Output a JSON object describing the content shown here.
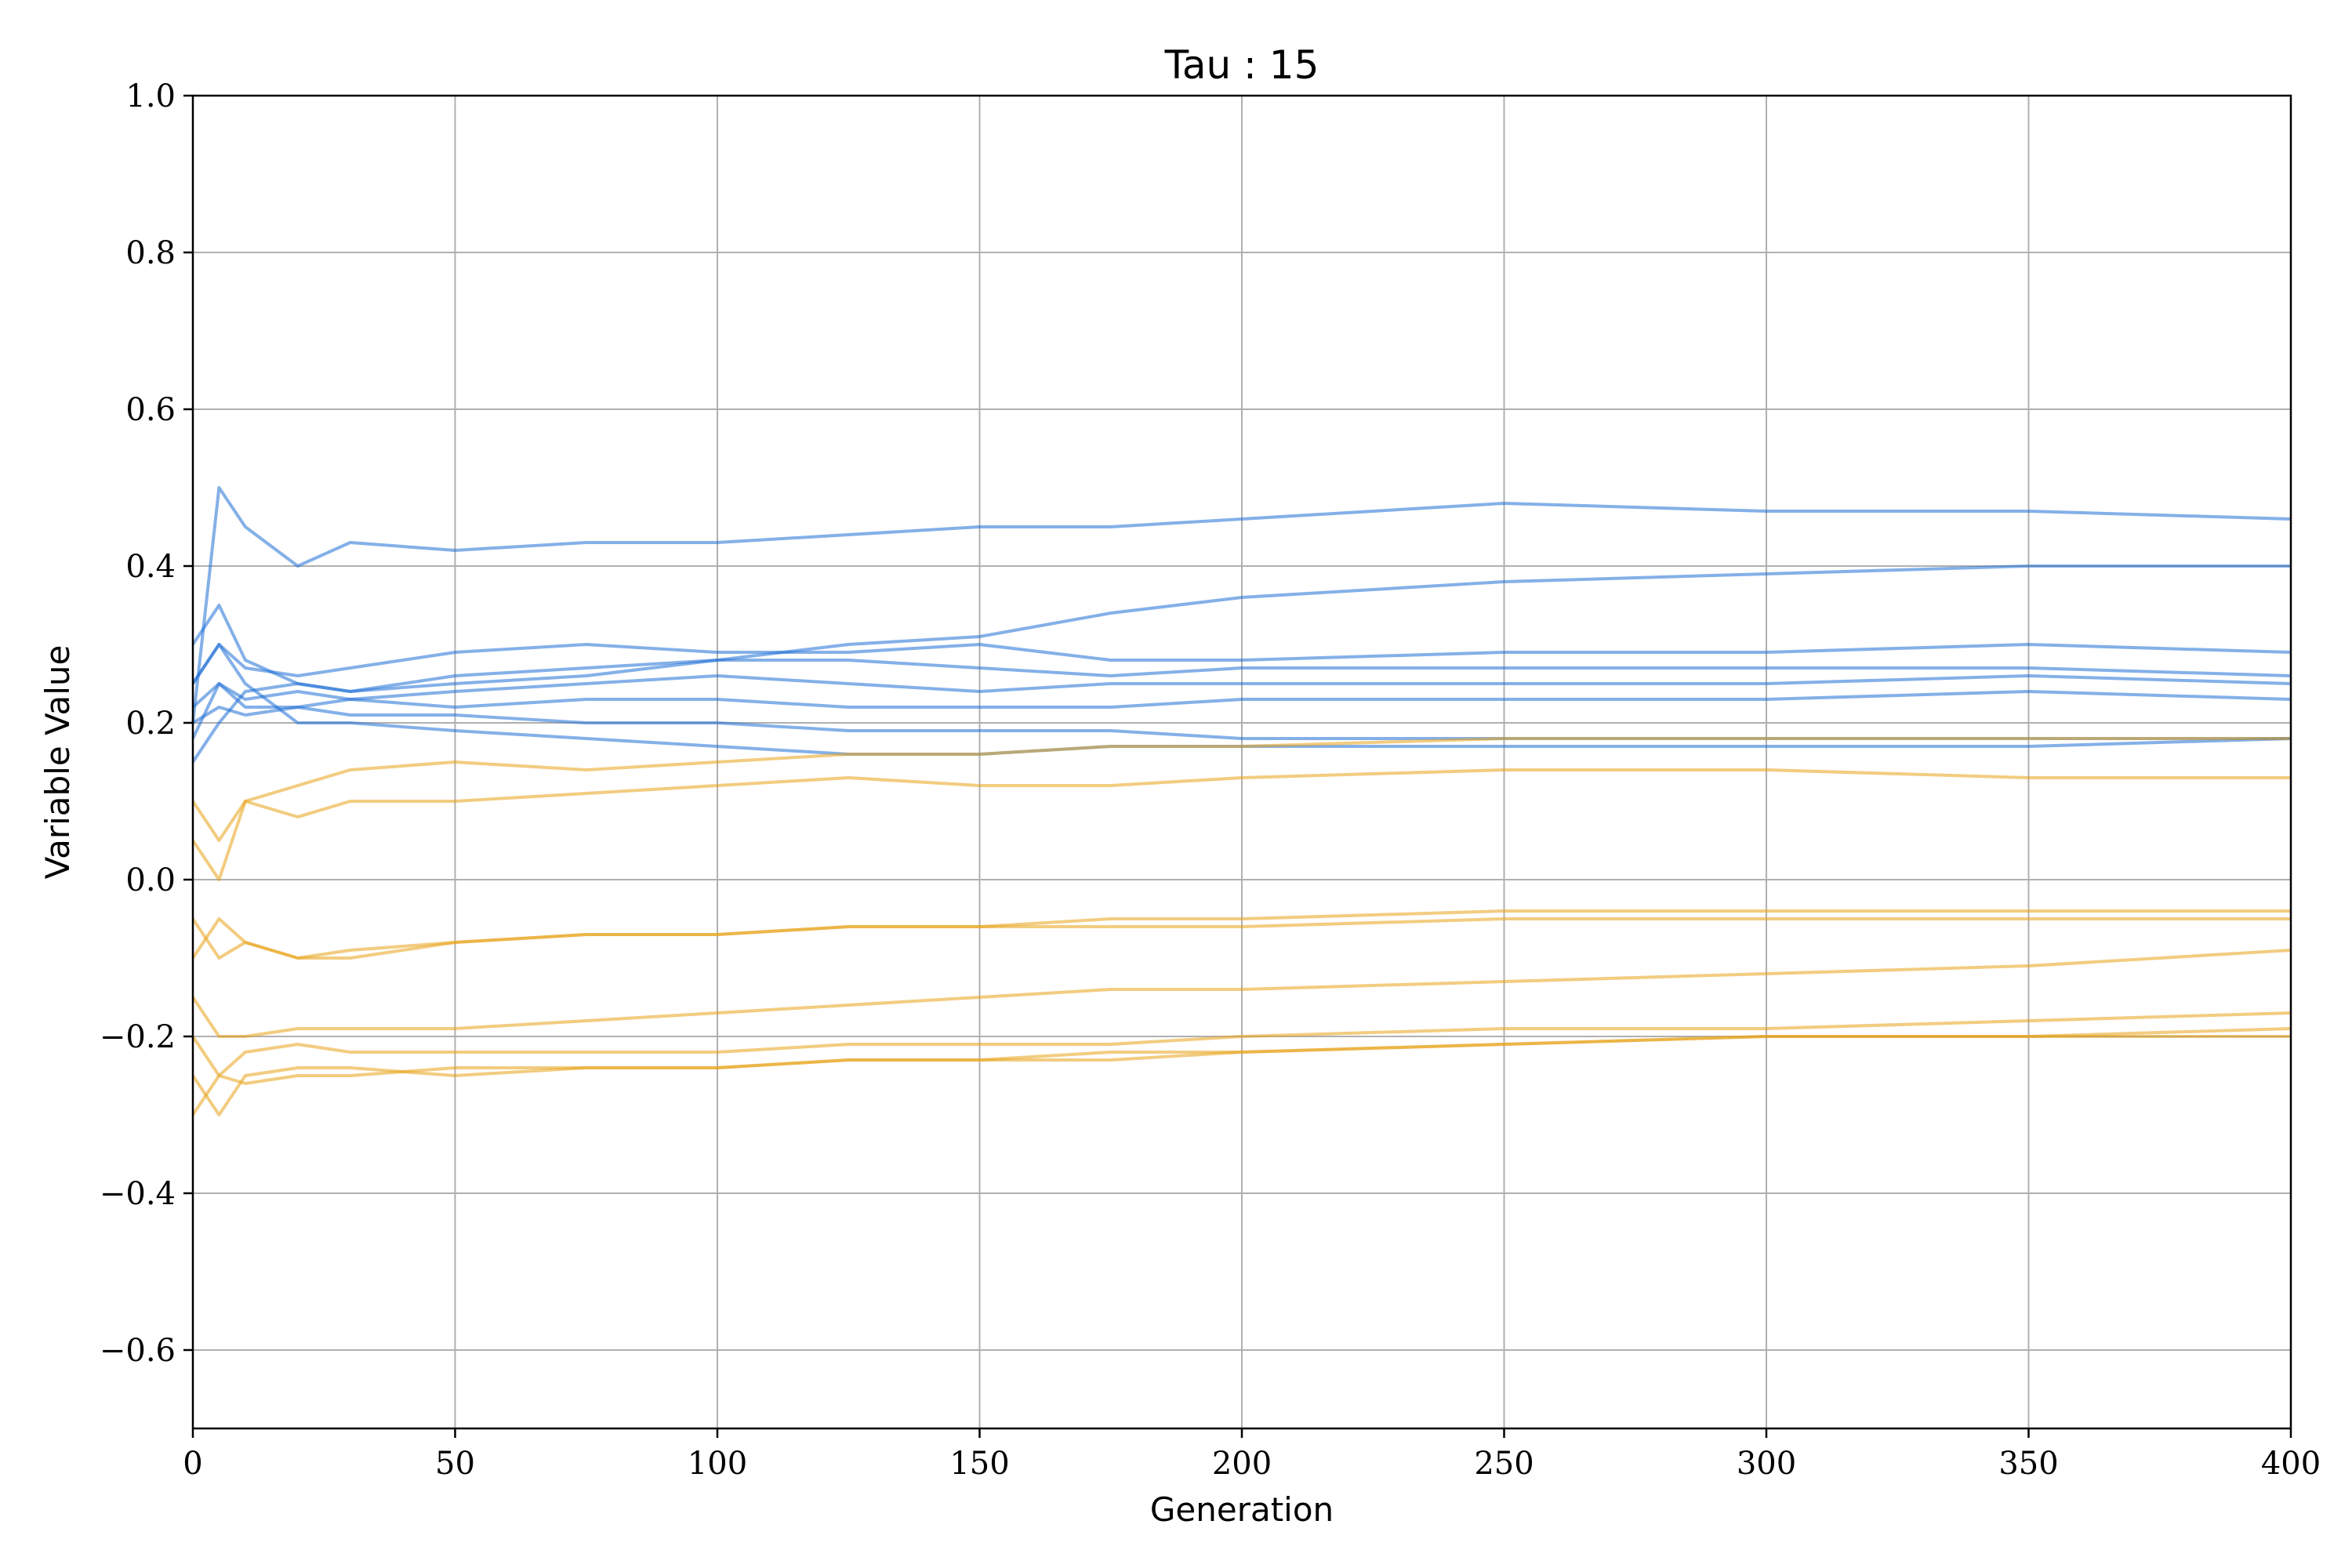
{
  "chart_data": {
    "type": "line",
    "title": "Tau : 15",
    "xlabel": "Generation",
    "ylabel": "Variable Value",
    "xlim": [
      0,
      400
    ],
    "ylim": [
      -0.7,
      1.0
    ],
    "xticks": [
      0,
      50,
      100,
      150,
      200,
      250,
      300,
      350,
      400
    ],
    "xtick_labels": [
      "0",
      "50",
      "100",
      "150",
      "200",
      "250",
      "300",
      "350",
      "400"
    ],
    "yticks": [
      -0.6,
      -0.4,
      -0.2,
      0.0,
      0.2,
      0.4,
      0.6,
      0.8,
      1.0
    ],
    "ytick_labels": [
      "−0.6",
      "−0.4",
      "−0.2",
      "0.0",
      "0.2",
      "0.4",
      "0.6",
      "0.8",
      "1.0"
    ],
    "grid": true,
    "legend": "none",
    "colors": {
      "blue": "#1f6fd6",
      "orange": "#e8a317"
    },
    "series": [
      {
        "color": "blue",
        "x": [
          0,
          5,
          10,
          20,
          30,
          50,
          75,
          100,
          125,
          150,
          175,
          200,
          250,
          300,
          350,
          400
        ],
        "y": [
          0.2,
          0.5,
          0.45,
          0.4,
          0.43,
          0.42,
          0.43,
          0.43,
          0.44,
          0.45,
          0.45,
          0.46,
          0.48,
          0.47,
          0.47,
          0.46
        ]
      },
      {
        "color": "blue",
        "x": [
          0,
          5,
          10,
          20,
          30,
          50,
          75,
          100,
          125,
          150,
          175,
          200,
          250,
          300,
          350,
          400
        ],
        "y": [
          0.3,
          0.35,
          0.28,
          0.25,
          0.24,
          0.25,
          0.26,
          0.28,
          0.3,
          0.31,
          0.34,
          0.36,
          0.38,
          0.39,
          0.4,
          0.4
        ]
      },
      {
        "color": "blue",
        "x": [
          0,
          5,
          10,
          20,
          30,
          50,
          75,
          100,
          125,
          150,
          175,
          200,
          250,
          300,
          350,
          400
        ],
        "y": [
          0.25,
          0.3,
          0.27,
          0.26,
          0.27,
          0.29,
          0.3,
          0.29,
          0.29,
          0.3,
          0.28,
          0.28,
          0.29,
          0.29,
          0.3,
          0.29
        ]
      },
      {
        "color": "blue",
        "x": [
          0,
          5,
          10,
          20,
          30,
          50,
          75,
          100,
          125,
          150,
          175,
          200,
          250,
          300,
          350,
          400
        ],
        "y": [
          0.15,
          0.2,
          0.24,
          0.25,
          0.24,
          0.26,
          0.27,
          0.28,
          0.28,
          0.27,
          0.26,
          0.27,
          0.27,
          0.27,
          0.27,
          0.26
        ]
      },
      {
        "color": "blue",
        "x": [
          0,
          5,
          10,
          20,
          30,
          50,
          75,
          100,
          125,
          150,
          175,
          200,
          250,
          300,
          350,
          400
        ],
        "y": [
          0.22,
          0.25,
          0.23,
          0.24,
          0.23,
          0.24,
          0.25,
          0.26,
          0.25,
          0.24,
          0.25,
          0.25,
          0.25,
          0.25,
          0.26,
          0.25
        ]
      },
      {
        "color": "blue",
        "x": [
          0,
          5,
          10,
          20,
          30,
          50,
          75,
          100,
          125,
          150,
          175,
          200,
          250,
          300,
          350,
          400
        ],
        "y": [
          0.2,
          0.22,
          0.21,
          0.22,
          0.23,
          0.22,
          0.23,
          0.23,
          0.22,
          0.22,
          0.22,
          0.23,
          0.23,
          0.23,
          0.24,
          0.23
        ]
      },
      {
        "color": "blue",
        "x": [
          0,
          5,
          10,
          20,
          30,
          50,
          75,
          100,
          125,
          150,
          175,
          200,
          250,
          300,
          350,
          400
        ],
        "y": [
          0.18,
          0.25,
          0.22,
          0.22,
          0.21,
          0.21,
          0.2,
          0.2,
          0.19,
          0.19,
          0.19,
          0.18,
          0.18,
          0.18,
          0.18,
          0.18
        ]
      },
      {
        "color": "blue",
        "x": [
          0,
          5,
          10,
          20,
          30,
          50,
          75,
          100,
          125,
          150,
          175,
          200,
          250,
          300,
          350,
          400
        ],
        "y": [
          0.25,
          0.3,
          0.25,
          0.2,
          0.2,
          0.19,
          0.18,
          0.17,
          0.16,
          0.16,
          0.17,
          0.17,
          0.17,
          0.17,
          0.17,
          0.18
        ]
      },
      {
        "color": "orange",
        "x": [
          0,
          5,
          10,
          20,
          30,
          50,
          75,
          100,
          125,
          150,
          175,
          200,
          250,
          300,
          350,
          400
        ],
        "y": [
          0.1,
          0.05,
          0.1,
          0.12,
          0.14,
          0.15,
          0.14,
          0.15,
          0.16,
          0.16,
          0.17,
          0.17,
          0.18,
          0.18,
          0.18,
          0.18
        ]
      },
      {
        "color": "orange",
        "x": [
          0,
          5,
          10,
          20,
          30,
          50,
          75,
          100,
          125,
          150,
          175,
          200,
          250,
          300,
          350,
          400
        ],
        "y": [
          0.05,
          0.0,
          0.1,
          0.08,
          0.1,
          0.1,
          0.11,
          0.12,
          0.13,
          0.12,
          0.12,
          0.13,
          0.14,
          0.14,
          0.13,
          0.13
        ]
      },
      {
        "color": "orange",
        "x": [
          0,
          5,
          10,
          20,
          30,
          50,
          75,
          100,
          125,
          150,
          175,
          200,
          250,
          300,
          350,
          400
        ],
        "y": [
          -0.1,
          -0.05,
          -0.08,
          -0.1,
          -0.09,
          -0.08,
          -0.07,
          -0.07,
          -0.06,
          -0.06,
          -0.06,
          -0.06,
          -0.05,
          -0.05,
          -0.05,
          -0.05
        ]
      },
      {
        "color": "orange",
        "x": [
          0,
          5,
          10,
          20,
          30,
          50,
          75,
          100,
          125,
          150,
          175,
          200,
          250,
          300,
          350,
          400
        ],
        "y": [
          -0.05,
          -0.1,
          -0.08,
          -0.1,
          -0.1,
          -0.08,
          -0.07,
          -0.07,
          -0.06,
          -0.06,
          -0.05,
          -0.05,
          -0.04,
          -0.04,
          -0.04,
          -0.04
        ]
      },
      {
        "color": "orange",
        "x": [
          0,
          5,
          10,
          20,
          30,
          50,
          75,
          100,
          125,
          150,
          175,
          200,
          250,
          300,
          350,
          400
        ],
        "y": [
          -0.15,
          -0.2,
          -0.2,
          -0.19,
          -0.19,
          -0.19,
          -0.18,
          -0.17,
          -0.16,
          -0.15,
          -0.14,
          -0.14,
          -0.13,
          -0.12,
          -0.11,
          -0.09
        ]
      },
      {
        "color": "orange",
        "x": [
          0,
          5,
          10,
          20,
          30,
          50,
          75,
          100,
          125,
          150,
          175,
          200,
          250,
          300,
          350,
          400
        ],
        "y": [
          -0.2,
          -0.25,
          -0.22,
          -0.21,
          -0.22,
          -0.22,
          -0.22,
          -0.22,
          -0.21,
          -0.21,
          -0.21,
          -0.2,
          -0.19,
          -0.19,
          -0.18,
          -0.17
        ]
      },
      {
        "color": "orange",
        "x": [
          0,
          5,
          10,
          20,
          30,
          50,
          75,
          100,
          125,
          150,
          175,
          200,
          250,
          300,
          350,
          400
        ],
        "y": [
          -0.25,
          -0.3,
          -0.25,
          -0.24,
          -0.24,
          -0.25,
          -0.24,
          -0.24,
          -0.23,
          -0.23,
          -0.22,
          -0.22,
          -0.21,
          -0.2,
          -0.2,
          -0.19
        ]
      },
      {
        "color": "orange",
        "x": [
          0,
          5,
          10,
          20,
          30,
          50,
          75,
          100,
          125,
          150,
          175,
          200,
          250,
          300,
          350,
          400
        ],
        "y": [
          -0.3,
          -0.25,
          -0.26,
          -0.25,
          -0.25,
          -0.24,
          -0.24,
          -0.24,
          -0.23,
          -0.23,
          -0.23,
          -0.22,
          -0.21,
          -0.2,
          -0.2,
          -0.2
        ]
      }
    ]
  }
}
